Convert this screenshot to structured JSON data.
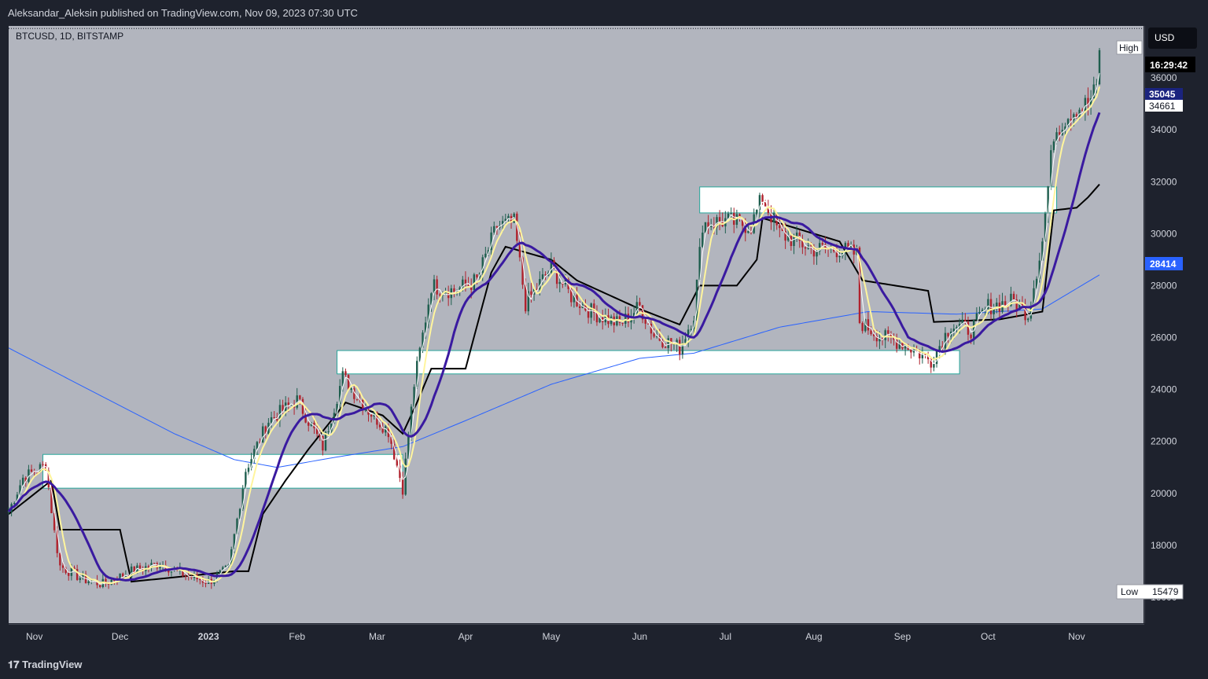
{
  "header": {
    "published": "Aleksandar_Aleksin published on TradingView.com, Nov 09, 2023 07:30 UTC",
    "symbol": "BTCUSD, 1D, BITSTAMP",
    "currency_button": "USD"
  },
  "footer": {
    "brand": "TradingView"
  },
  "labels": {
    "high": "High",
    "low": "Low",
    "low_value": "15479",
    "countdown": "16:29:42",
    "price_tag_1": "35045",
    "price_tag_2": "34661",
    "price_tag_3": "28414"
  },
  "colors": {
    "background": "#b2b5be",
    "panel": "#1e222d",
    "up_candle": "#1e5e4e",
    "down_candle": "#b0222d",
    "ma_fast": "#fff59d",
    "ma_mid": "#3a1aa0",
    "ma_slow": "#000000",
    "ma_long": "#2962ff",
    "zone_fill": "#ffffff",
    "zone_border": "#26a69a"
  },
  "chart_data": {
    "type": "candlestick",
    "ylim": [
      15000,
      38000
    ],
    "y_ticks": [
      16000,
      18000,
      20000,
      22000,
      24000,
      26000,
      28000,
      30000,
      32000,
      34000,
      36000
    ],
    "y_tick_labels": [
      "16000",
      "18000",
      "20000",
      "22000",
      "24000",
      "26000",
      "28000",
      "30000",
      "32000",
      "34000",
      "36000"
    ],
    "x_ticks": [
      {
        "label": "Nov",
        "date": "2022-11-01",
        "bold": false
      },
      {
        "label": "Dec",
        "date": "2022-12-01",
        "bold": false
      },
      {
        "label": "2023",
        "date": "2023-01-01",
        "bold": true
      },
      {
        "label": "Feb",
        "date": "2023-02-01",
        "bold": false
      },
      {
        "label": "Mar",
        "date": "2023-03-01",
        "bold": false
      },
      {
        "label": "Apr",
        "date": "2023-04-01",
        "bold": false
      },
      {
        "label": "May",
        "date": "2023-05-01",
        "bold": false
      },
      {
        "label": "Jun",
        "date": "2023-06-01",
        "bold": false
      },
      {
        "label": "Jul",
        "date": "2023-07-01",
        "bold": false
      },
      {
        "label": "Aug",
        "date": "2023-08-01",
        "bold": false
      },
      {
        "label": "Sep",
        "date": "2023-09-01",
        "bold": false
      },
      {
        "label": "Oct",
        "date": "2023-10-01",
        "bold": false
      },
      {
        "label": "Nov",
        "date": "2023-11-01",
        "bold": false
      }
    ],
    "x_range": [
      "2022-10-23",
      "2023-11-09"
    ],
    "high_line": 37900,
    "zones": [
      {
        "from": "2022-11-04",
        "to": "2023-03-10",
        "low": 20200,
        "high": 21500
      },
      {
        "from": "2023-02-15",
        "to": "2023-09-21",
        "low": 24600,
        "high": 25500
      },
      {
        "from": "2023-06-22",
        "to": "2023-10-25",
        "low": 30800,
        "high": 31800
      }
    ],
    "close_path": [
      [
        "2022-10-23",
        19300
      ],
      [
        "2022-10-28",
        20600
      ],
      [
        "2022-11-05",
        21100
      ],
      [
        "2022-11-08",
        18500
      ],
      [
        "2022-11-10",
        17200
      ],
      [
        "2022-11-18",
        16700
      ],
      [
        "2022-11-25",
        16500
      ],
      [
        "2022-12-05",
        17000
      ],
      [
        "2022-12-15",
        17300
      ],
      [
        "2022-12-25",
        16800
      ],
      [
        "2023-01-01",
        16600
      ],
      [
        "2023-01-08",
        17100
      ],
      [
        "2023-01-14",
        20900
      ],
      [
        "2023-01-22",
        22800
      ],
      [
        "2023-02-01",
        23600
      ],
      [
        "2023-02-10",
        21800
      ],
      [
        "2023-02-17",
        24500
      ],
      [
        "2023-02-25",
        23300
      ],
      [
        "2023-03-05",
        22400
      ],
      [
        "2023-03-10",
        20200
      ],
      [
        "2023-03-14",
        24200
      ],
      [
        "2023-03-20",
        28000
      ],
      [
        "2023-03-28",
        27800
      ],
      [
        "2023-04-05",
        28200
      ],
      [
        "2023-04-12",
        30300
      ],
      [
        "2023-04-18",
        30400
      ],
      [
        "2023-04-22",
        27300
      ],
      [
        "2023-05-01",
        28700
      ],
      [
        "2023-05-08",
        27600
      ],
      [
        "2023-05-15",
        27000
      ],
      [
        "2023-05-25",
        26500
      ],
      [
        "2023-06-01",
        27200
      ],
      [
        "2023-06-06",
        26100
      ],
      [
        "2023-06-15",
        25600
      ],
      [
        "2023-06-20",
        26900
      ],
      [
        "2023-06-23",
        30400
      ],
      [
        "2023-07-01",
        30500
      ],
      [
        "2023-07-10",
        30300
      ],
      [
        "2023-07-14",
        31400
      ],
      [
        "2023-07-20",
        30000
      ],
      [
        "2023-08-01",
        29400
      ],
      [
        "2023-08-10",
        29400
      ],
      [
        "2023-08-16",
        29200
      ],
      [
        "2023-08-17",
        26600
      ],
      [
        "2023-08-25",
        26000
      ],
      [
        "2023-09-01",
        25800
      ],
      [
        "2023-09-11",
        25100
      ],
      [
        "2023-09-18",
        26500
      ],
      [
        "2023-09-25",
        26300
      ],
      [
        "2023-10-01",
        27200
      ],
      [
        "2023-10-10",
        27400
      ],
      [
        "2023-10-15",
        26900
      ],
      [
        "2023-10-20",
        29700
      ],
      [
        "2023-10-24",
        33900
      ],
      [
        "2023-10-30",
        34700
      ],
      [
        "2023-11-05",
        35000
      ],
      [
        "2023-11-08",
        35600
      ],
      [
        "2023-11-09",
        37200
      ]
    ],
    "ma_long": [
      [
        "2022-10-23",
        25600
      ],
      [
        "2022-11-20",
        24000
      ],
      [
        "2022-12-20",
        22300
      ],
      [
        "2023-01-10",
        21300
      ],
      [
        "2023-01-25",
        21000
      ],
      [
        "2023-02-15",
        21400
      ],
      [
        "2023-03-10",
        21800
      ],
      [
        "2023-04-01",
        22800
      ],
      [
        "2023-05-01",
        24200
      ],
      [
        "2023-06-01",
        25200
      ],
      [
        "2023-06-20",
        25400
      ],
      [
        "2023-07-20",
        26400
      ],
      [
        "2023-08-20",
        27000
      ],
      [
        "2023-09-20",
        26900
      ],
      [
        "2023-10-20",
        27100
      ],
      [
        "2023-11-09",
        28414
      ]
    ],
    "ma_slow": [
      [
        "2022-10-23",
        19200
      ],
      [
        "2022-11-07",
        20500
      ],
      [
        "2022-11-10",
        18600
      ],
      [
        "2022-12-01",
        18600
      ],
      [
        "2022-12-05",
        16600
      ],
      [
        "2023-01-10",
        17000
      ],
      [
        "2023-01-15",
        17000
      ],
      [
        "2023-01-20",
        19200
      ],
      [
        "2023-01-28",
        20500
      ],
      [
        "2023-02-05",
        21700
      ],
      [
        "2023-02-18",
        23500
      ],
      [
        "2023-03-03",
        23000
      ],
      [
        "2023-03-10",
        22300
      ],
      [
        "2023-03-15",
        23500
      ],
      [
        "2023-03-20",
        24800
      ],
      [
        "2023-04-01",
        24800
      ],
      [
        "2023-04-10",
        28500
      ],
      [
        "2023-04-15",
        29500
      ],
      [
        "2023-05-01",
        29000
      ],
      [
        "2023-05-10",
        28200
      ],
      [
        "2023-06-01",
        27100
      ],
      [
        "2023-06-15",
        26500
      ],
      [
        "2023-06-22",
        28000
      ],
      [
        "2023-07-05",
        28000
      ],
      [
        "2023-07-12",
        29000
      ],
      [
        "2023-07-14",
        30600
      ],
      [
        "2023-07-20",
        30400
      ],
      [
        "2023-08-10",
        29700
      ],
      [
        "2023-08-18",
        28200
      ],
      [
        "2023-09-10",
        27800
      ],
      [
        "2023-09-12",
        26600
      ],
      [
        "2023-10-05",
        26700
      ],
      [
        "2023-10-20",
        27000
      ],
      [
        "2023-10-24",
        30900
      ],
      [
        "2023-11-01",
        31000
      ],
      [
        "2023-11-05",
        31400
      ],
      [
        "2023-11-09",
        31900
      ]
    ],
    "ma_fast_lag": 2,
    "ma_mid_lag": 6
  }
}
